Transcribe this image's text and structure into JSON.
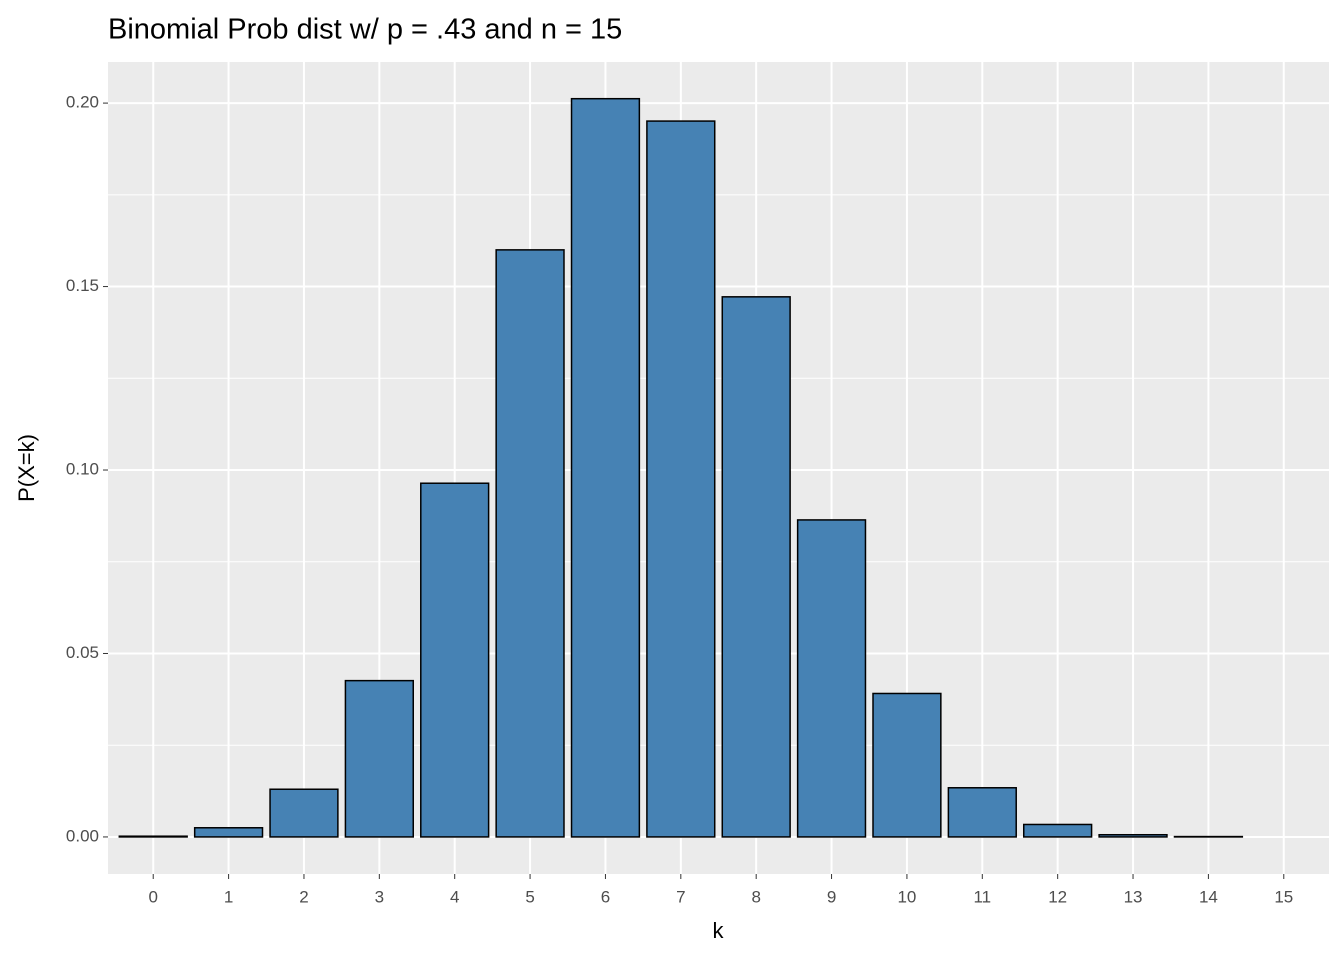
{
  "chart_data": {
    "type": "bar",
    "title": "Binomial Prob dist w/ p = .43 and n = 15",
    "x_label": "k",
    "y_label": "P(X=k)",
    "categories": [
      "0",
      "1",
      "2",
      "3",
      "4",
      "5",
      "6",
      "7",
      "8",
      "9",
      "10",
      "11",
      "12",
      "13",
      "14",
      "15"
    ],
    "values": [
      0.0002,
      0.0025,
      0.013,
      0.0426,
      0.0964,
      0.16,
      0.2012,
      0.1951,
      0.1472,
      0.0864,
      0.0391,
      0.0134,
      0.0034,
      0.0006,
      0.0001,
      0.0
    ],
    "color": "#4682b4",
    "edge_color": "#000000",
    "ylim": [
      -0.0101,
      0.2112
    ],
    "yticks": [
      {
        "value": 0,
        "label": "0.00"
      },
      {
        "value": 0.05,
        "label": "0.05"
      },
      {
        "value": 0.1,
        "label": "0.10"
      },
      {
        "value": 0.15,
        "label": "0.15"
      },
      {
        "value": 0.2,
        "label": "0.20"
      }
    ],
    "grid": true
  }
}
